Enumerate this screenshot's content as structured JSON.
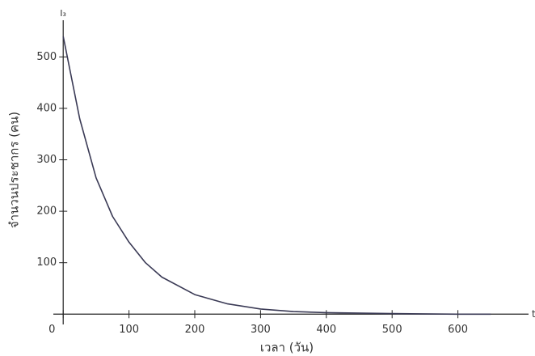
{
  "chart_data": {
    "type": "line",
    "x_label": "เวลา (วัน)",
    "y_label": "จำนวนประชากร (คน)",
    "x_symbol": "t",
    "y_symbol": "I₃",
    "x": [
      0,
      25,
      50,
      75,
      100,
      125,
      150,
      200,
      250,
      300,
      350,
      400,
      500,
      600,
      650
    ],
    "series": [
      {
        "color": "#3a3a55",
        "values": [
          540,
          380,
          265,
          190,
          140,
          100,
          72,
          38,
          20,
          10,
          5,
          3,
          1,
          0,
          0
        ]
      }
    ],
    "xlim": [
      -15,
      700
    ],
    "ylim": [
      -20,
      565
    ],
    "xticks": [
      0,
      100,
      200,
      300,
      400,
      500,
      600
    ],
    "yticks": [
      100,
      200,
      300,
      400,
      500
    ],
    "grid": false
  }
}
